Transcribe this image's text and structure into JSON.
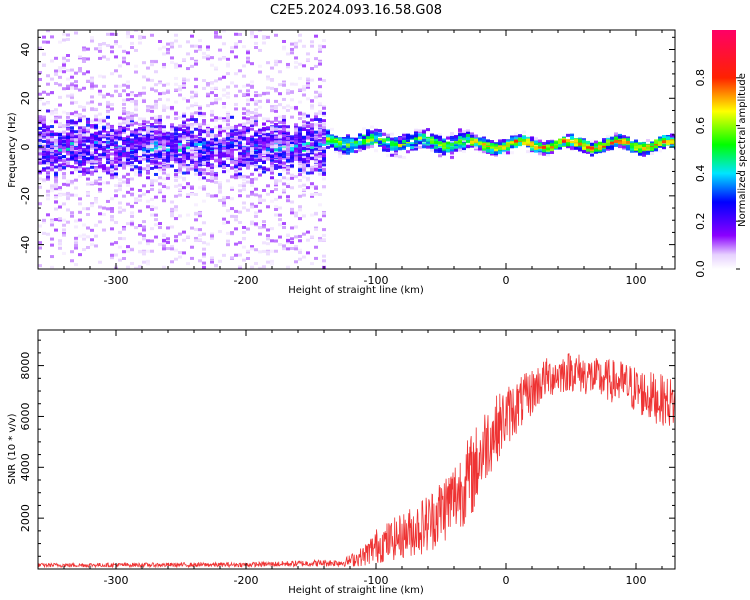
{
  "title": "C2E5.2024.093.16.58.G08",
  "chart_data": [
    {
      "type": "heatmap",
      "xlabel": "Height of straight line (km)",
      "ylabel": "Frequency (Hz)",
      "xlim": [
        -360,
        130
      ],
      "ylim": [
        -50,
        48
      ],
      "x_ticks": [
        -300,
        -200,
        -100,
        0,
        100
      ],
      "y_ticks": [
        -40,
        -20,
        0,
        20,
        40
      ],
      "colorbar": {
        "label": "Normalized spectral amplitude",
        "range": [
          0.0,
          1.0
        ],
        "ticks": [
          0.0,
          0.2,
          0.4,
          0.6,
          0.8
        ],
        "colors": [
          "#ffffff",
          "#6a00ff",
          "#0000ff",
          "#00ffff",
          "#00ff00",
          "#ffff00",
          "#ff0000",
          "#ff0066"
        ]
      },
      "description_regions": [
        {
          "x_range": [
            -360,
            -140
          ],
          "freq_center": 0,
          "freq_spread": 48,
          "amplitude": 0.15
        },
        {
          "x_range": [
            -140,
            -30
          ],
          "freq_center": 2,
          "freq_spread": 6,
          "amplitude": 0.55
        },
        {
          "x_range": [
            -30,
            130
          ],
          "freq_center": 1,
          "freq_spread": 4,
          "amplitude": 0.75
        }
      ]
    },
    {
      "type": "line",
      "xlabel": "Height of straight line (km)",
      "ylabel": "SNR (10 * v/v)",
      "xlim": [
        -360,
        130
      ],
      "ylim": [
        0,
        9400
      ],
      "x_ticks": [
        -300,
        -200,
        -100,
        0,
        100
      ],
      "y_ticks": [
        2000,
        4000,
        6000,
        8000
      ],
      "color": "#ee3333",
      "series_envelope": {
        "x": [
          -360,
          -200,
          -125,
          -110,
          -100,
          -80,
          -60,
          -40,
          -25,
          -15,
          0,
          15,
          30,
          50,
          70,
          90,
          110,
          130
        ],
        "y": [
          150,
          170,
          250,
          500,
          900,
          1300,
          1800,
          2800,
          3800,
          5000,
          6000,
          6700,
          7500,
          7800,
          7500,
          7300,
          6800,
          6500
        ],
        "noise": [
          80,
          90,
          150,
          400,
          700,
          900,
          1200,
          1500,
          1700,
          1500,
          1200,
          1000,
          800,
          800,
          800,
          900,
          1000,
          1000
        ]
      }
    }
  ]
}
